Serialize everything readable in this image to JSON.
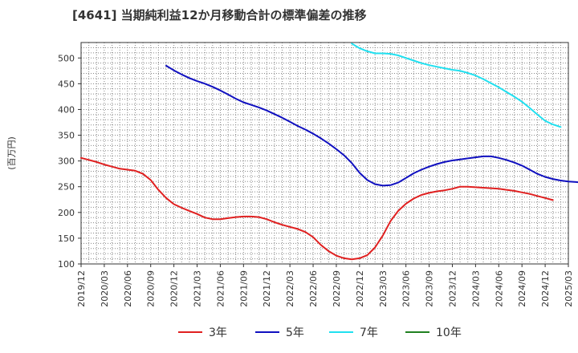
{
  "chart_data": {
    "type": "line",
    "title": "[4641]  当期純利益12か月移動合計の標準偏差の推移",
    "ylabel": "(百万円)",
    "xlabel": "",
    "ylim": [
      100,
      530
    ],
    "yticks": [
      100,
      150,
      200,
      250,
      300,
      350,
      400,
      450,
      500
    ],
    "x_start": "2019/12",
    "x_end": "2025/03",
    "xticks": [
      "2019/12",
      "2020/03",
      "2020/06",
      "2020/09",
      "2020/12",
      "2021/03",
      "2021/06",
      "2021/09",
      "2021/12",
      "2022/03",
      "2022/06",
      "2022/09",
      "2022/12",
      "2023/03",
      "2023/06",
      "2023/09",
      "2023/12",
      "2024/03",
      "2024/06",
      "2024/09",
      "2024/12",
      "2025/03"
    ],
    "grid": true,
    "legend_position": "bottom",
    "series": [
      {
        "name": "3年",
        "color": "#e02020",
        "start": "2019/12",
        "values": [
          306,
          302,
          298,
          293,
          289,
          285,
          283,
          281,
          275,
          263,
          244,
          228,
          216,
          209,
          203,
          197,
          190,
          187,
          187,
          189,
          191,
          192,
          192,
          191,
          187,
          181,
          176,
          172,
          168,
          162,
          152,
          137,
          125,
          116,
          111,
          109,
          111,
          117,
          132,
          155,
          183,
          203,
          217,
          227,
          234,
          238,
          241,
          243,
          246,
          250,
          250,
          249,
          248,
          247,
          246,
          244,
          242,
          239,
          236,
          232,
          228,
          224
        ]
      },
      {
        "name": "5年",
        "color": "#1010c0",
        "start": "2020/11",
        "values": [
          485,
          476,
          468,
          461,
          455,
          450,
          444,
          437,
          429,
          421,
          414,
          409,
          404,
          398,
          391,
          384,
          376,
          368,
          361,
          353,
          344,
          334,
          323,
          311,
          296,
          277,
          263,
          255,
          252,
          253,
          258,
          267,
          276,
          283,
          289,
          294,
          298,
          301,
          303,
          305,
          307,
          309,
          309,
          306,
          302,
          297,
          291,
          283,
          275,
          269,
          265,
          262,
          260,
          259,
          258
        ]
      },
      {
        "name": "7年",
        "color": "#20e0f0",
        "start": "2022/11",
        "values": [
          528,
          519,
          513,
          509,
          509,
          508,
          505,
          500,
          495,
          490,
          486,
          483,
          480,
          477,
          475,
          471,
          466,
          459,
          451,
          443,
          434,
          425,
          415,
          403,
          390,
          378,
          371,
          366
        ]
      },
      {
        "name": "10年",
        "color": "#208020",
        "start": "2019/12",
        "values": []
      }
    ]
  }
}
